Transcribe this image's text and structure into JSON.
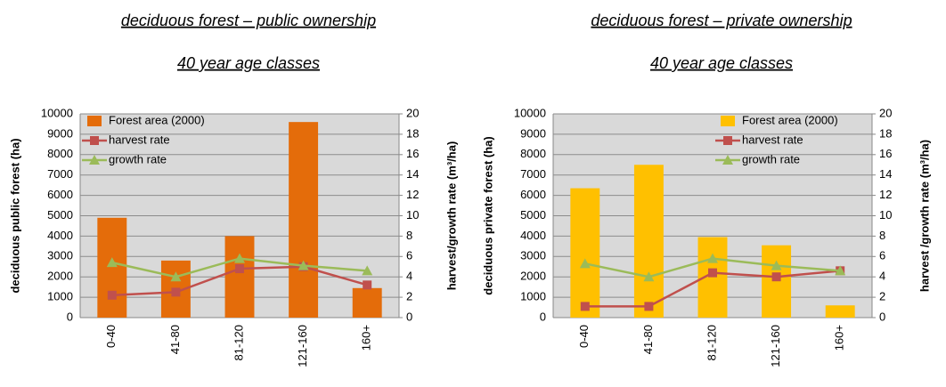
{
  "chart_data": [
    {
      "type": "combo",
      "title": "deciduous forest – public ownership",
      "subtitle": "40 year age classes",
      "y_label": "deciduous public forest (ha)",
      "y2_label": "harvest/growth rate (m³/ha)",
      "categories": [
        "0-40",
        "41-80",
        "81-120",
        "121-160",
        "160+"
      ],
      "series": [
        {
          "name": "Forest area (2000)",
          "type": "bar",
          "color": "#e46c0a",
          "values": [
            4900,
            2800,
            4000,
            9600,
            1450
          ]
        },
        {
          "name": "harvest rate",
          "type": "line",
          "marker": "square",
          "axis": "y2",
          "color": "#c0504d",
          "values": [
            2.2,
            2.5,
            4.8,
            5.0,
            3.2
          ]
        },
        {
          "name": "growth rate",
          "type": "line",
          "marker": "triangle",
          "axis": "y2",
          "color": "#9bbb59",
          "values": [
            5.4,
            4.0,
            5.8,
            5.1,
            4.6
          ]
        }
      ],
      "ylim": [
        0,
        10000
      ],
      "yticks": [
        0,
        1000,
        2000,
        3000,
        4000,
        5000,
        6000,
        7000,
        8000,
        9000,
        10000
      ],
      "y2lim": [
        0,
        20
      ],
      "y2ticks": [
        0,
        2,
        4,
        6,
        8,
        10,
        12,
        14,
        16,
        18,
        20
      ],
      "grid": true,
      "legend": "upper left"
    },
    {
      "type": "combo",
      "title": "deciduous forest – private ownership",
      "subtitle": "40 year age classes",
      "y_label": "deciduous private forest (ha)",
      "y2_label": "harvest /growth rate (m³/ha)",
      "categories": [
        "0-40",
        "41-80",
        "81-120",
        "121-160",
        "160+"
      ],
      "series": [
        {
          "name": "Forest area (2000)",
          "type": "bar",
          "color": "#ffc000",
          "values": [
            6350,
            7500,
            3950,
            3550,
            600
          ]
        },
        {
          "name": "harvest rate",
          "type": "line",
          "marker": "square",
          "axis": "y2",
          "color": "#c0504d",
          "values": [
            1.1,
            1.1,
            4.4,
            4.0,
            4.6
          ]
        },
        {
          "name": "growth rate",
          "type": "line",
          "marker": "triangle",
          "axis": "y2",
          "color": "#9bbb59",
          "values": [
            5.3,
            4.0,
            5.8,
            5.1,
            4.6
          ]
        }
      ],
      "ylim": [
        0,
        10000
      ],
      "yticks": [
        0,
        1000,
        2000,
        3000,
        4000,
        5000,
        6000,
        7000,
        8000,
        9000,
        10000
      ],
      "y2lim": [
        0,
        20
      ],
      "y2ticks": [
        0,
        2,
        4,
        6,
        8,
        10,
        12,
        14,
        16,
        18,
        20
      ],
      "grid": true,
      "legend": "upper right"
    }
  ]
}
